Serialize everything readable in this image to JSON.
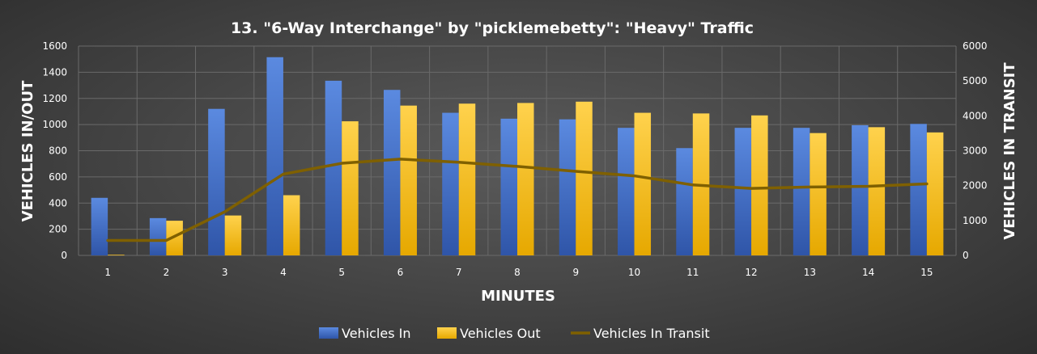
{
  "chart_data": {
    "type": "bar",
    "title": "13. \"6-Way Interchange\" by \"picklemebetty\": \"Heavy\" Traffic",
    "xlabel": "MINUTES",
    "ylabel": "VEHICLES IN/OUT",
    "y2label": "VEHICLES IN TRANSIT",
    "categories": [
      "1",
      "2",
      "3",
      "4",
      "5",
      "6",
      "7",
      "8",
      "9",
      "10",
      "11",
      "12",
      "13",
      "14",
      "15"
    ],
    "ylim": [
      0,
      1600
    ],
    "y2lim": [
      0,
      6000
    ],
    "yticks": [
      "0",
      "200",
      "400",
      "600",
      "800",
      "1000",
      "1200",
      "1400",
      "1600"
    ],
    "y2ticks": [
      "0",
      "1000",
      "2000",
      "3000",
      "4000",
      "5000",
      "6000"
    ],
    "grid": true,
    "legend_position": "bottom",
    "series": [
      {
        "name": "Vehicles In",
        "type": "bar",
        "axis": "left",
        "color": "#4472c4",
        "values": [
          440,
          285,
          1120,
          1515,
          1335,
          1265,
          1090,
          1045,
          1040,
          975,
          820,
          975,
          975,
          995,
          1005
        ]
      },
      {
        "name": "Vehicles Out",
        "type": "bar",
        "axis": "left",
        "color": "#ffc000",
        "values": [
          5,
          265,
          305,
          460,
          1025,
          1145,
          1160,
          1165,
          1175,
          1090,
          1085,
          1070,
          935,
          980,
          940
        ]
      },
      {
        "name": "Vehicles In Transit",
        "type": "line",
        "axis": "right",
        "color": "#7f6000",
        "values": [
          430,
          430,
          1250,
          2330,
          2640,
          2760,
          2670,
          2550,
          2410,
          2280,
          2020,
          1920,
          1960,
          1980,
          2050
        ]
      }
    ]
  }
}
